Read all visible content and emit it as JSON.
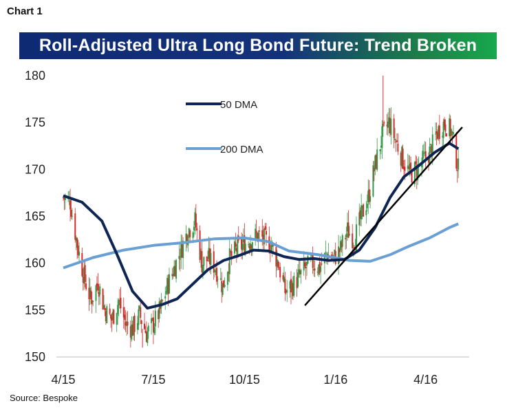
{
  "header": {
    "chart_number": "Chart 1",
    "source": "Source: Bespoke"
  },
  "colors": {
    "dma50": "#0e2452",
    "dma200": "#6a9fd4",
    "up_candle": "#2e9a45",
    "down_candle": "#d62a2a",
    "trendline": "#000000",
    "banner_start": "#0e2a73",
    "banner_end": "#17a84c"
  },
  "chart_data": {
    "type": "line",
    "title": "Roll-Adjusted Ultra Long Bond Future: Trend Broken",
    "xlabel": "",
    "ylabel": "",
    "ylim": [
      150,
      180
    ],
    "yticks": [
      150,
      155,
      160,
      165,
      170,
      175,
      180
    ],
    "xlim": [
      "2015-04-01",
      "2016-05-15"
    ],
    "xticks": [
      {
        "date": "2015-04-01",
        "label": "4/15"
      },
      {
        "date": "2015-07-01",
        "label": "7/15"
      },
      {
        "date": "2015-10-01",
        "label": "10/15"
      },
      {
        "date": "2016-01-01",
        "label": "1/16"
      },
      {
        "date": "2016-04-01",
        "label": "4/16"
      }
    ],
    "grid": false,
    "legend_position": "top-left",
    "price_series": {
      "description": "daily price bars (green = up day, red = down day)",
      "dates": [
        "2015-04-01",
        "2015-04-08",
        "2015-04-15",
        "2015-04-22",
        "2015-04-29",
        "2015-05-06",
        "2015-05-13",
        "2015-05-20",
        "2015-05-27",
        "2015-06-03",
        "2015-06-10",
        "2015-06-17",
        "2015-06-24",
        "2015-07-01",
        "2015-07-08",
        "2015-07-15",
        "2015-07-22",
        "2015-07-29",
        "2015-08-05",
        "2015-08-12",
        "2015-08-19",
        "2015-08-26",
        "2015-09-02",
        "2015-09-09",
        "2015-09-16",
        "2015-09-23",
        "2015-09-30",
        "2015-10-07",
        "2015-10-14",
        "2015-10-21",
        "2015-10-28",
        "2015-11-04",
        "2015-11-11",
        "2015-11-18",
        "2015-11-25",
        "2015-12-02",
        "2015-12-09",
        "2015-12-16",
        "2015-12-23",
        "2015-12-30",
        "2016-01-06",
        "2016-01-13",
        "2016-01-20",
        "2016-01-27",
        "2016-02-03",
        "2016-02-10",
        "2016-02-17",
        "2016-02-24",
        "2016-03-02",
        "2016-03-09",
        "2016-03-16",
        "2016-03-23",
        "2016-03-30",
        "2016-04-06",
        "2016-04-13",
        "2016-04-20",
        "2016-04-27",
        "2016-05-04"
      ],
      "values": [
        167.0,
        166.5,
        162.0,
        158.5,
        156.0,
        158.0,
        155.0,
        154.0,
        156.0,
        153.5,
        153.0,
        154.5,
        152.5,
        153.5,
        155.0,
        157.5,
        159.5,
        161.5,
        163.5,
        164.5,
        160.0,
        160.5,
        159.5,
        157.5,
        160.5,
        161.5,
        162.0,
        162.5,
        163.0,
        162.5,
        162.0,
        160.0,
        157.0,
        157.5,
        158.5,
        159.5,
        160.0,
        159.5,
        161.0,
        160.5,
        161.5,
        163.5,
        162.5,
        165.0,
        167.0,
        170.5,
        173.5,
        175.0,
        173.0,
        171.0,
        169.5,
        170.0,
        171.0,
        172.0,
        174.0,
        175.0,
        174.0,
        170.0
      ],
      "high": 180.0,
      "low": 151.0
    },
    "series": [
      {
        "name": "50 DMA",
        "dates": [
          "2015-04-01",
          "2015-04-20",
          "2015-05-10",
          "2015-05-25",
          "2015-06-10",
          "2015-06-25",
          "2015-07-10",
          "2015-07-25",
          "2015-08-10",
          "2015-08-25",
          "2015-09-10",
          "2015-09-25",
          "2015-10-10",
          "2015-10-25",
          "2015-11-10",
          "2015-11-25",
          "2015-12-10",
          "2015-12-25",
          "2016-01-10",
          "2016-01-25",
          "2016-02-10",
          "2016-02-25",
          "2016-03-10",
          "2016-03-25",
          "2016-04-10",
          "2016-04-25",
          "2016-05-04"
        ],
        "values": [
          167.2,
          166.5,
          164.5,
          161.0,
          157.0,
          155.2,
          155.6,
          156.2,
          157.8,
          159.3,
          160.3,
          160.8,
          161.4,
          161.3,
          160.7,
          160.4,
          160.5,
          160.3,
          160.4,
          161.4,
          163.8,
          167.0,
          169.2,
          170.4,
          171.8,
          172.8,
          172.2
        ]
      },
      {
        "name": "200 DMA",
        "dates": [
          "2015-04-01",
          "2015-05-01",
          "2015-06-01",
          "2015-07-01",
          "2015-08-01",
          "2015-09-01",
          "2015-10-01",
          "2015-10-25",
          "2015-11-15",
          "2015-12-15",
          "2016-01-15",
          "2016-02-05",
          "2016-02-25",
          "2016-03-15",
          "2016-04-05",
          "2016-04-25",
          "2016-05-04"
        ],
        "values": [
          159.5,
          160.6,
          161.4,
          161.9,
          162.2,
          162.6,
          162.7,
          162.3,
          161.3,
          160.9,
          160.3,
          160.2,
          160.9,
          161.8,
          162.7,
          163.8,
          164.2
        ]
      }
    ],
    "annotations": [
      {
        "type": "trendline",
        "from": {
          "date": "2015-12-01",
          "value": 155.5
        },
        "to": {
          "date": "2016-05-08",
          "value": 174.5
        }
      }
    ]
  }
}
